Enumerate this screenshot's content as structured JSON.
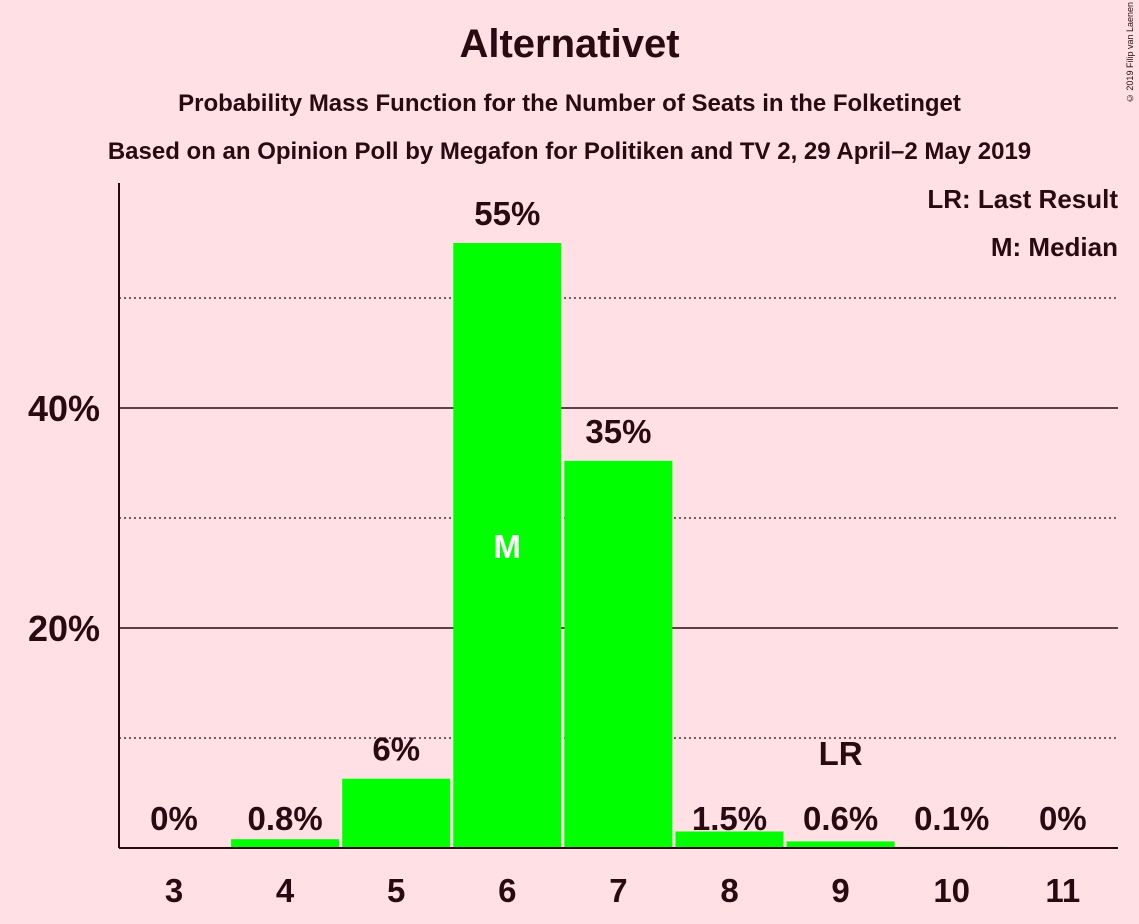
{
  "title": "Alternativet",
  "subtitle1": "Probability Mass Function for the Number of Seats in the Folketinget",
  "subtitle2": "Based on an Opinion Poll by Megafon for Politiken and TV 2, 29 April–2 May 2019",
  "copyright": "© 2019 Filip van Laenen",
  "legend": {
    "lr": "LR: Last Result",
    "m": "M: Median"
  },
  "colors": {
    "bar": "#00FF00",
    "background": "#FFE0E5",
    "text": "#2a0a12"
  },
  "chart_data": {
    "type": "bar",
    "categories": [
      "3",
      "4",
      "5",
      "6",
      "7",
      "8",
      "9",
      "10",
      "11"
    ],
    "values": [
      0,
      0.8,
      6.3,
      55,
      35.2,
      1.5,
      0.6,
      0.1,
      0
    ],
    "data_labels": [
      "0%",
      "0.8%",
      "6%",
      "55%",
      "35%",
      "1.5%",
      "0.6%",
      "0.1%",
      "0%"
    ],
    "ytick_labels": [
      "20%",
      "40%"
    ],
    "ylim": [
      0,
      60
    ],
    "major_gridlines": [
      20,
      40
    ],
    "minor_gridlines": [
      10,
      30,
      50
    ],
    "median": {
      "category": "6",
      "label": "M"
    },
    "last_result": {
      "category": "9",
      "label": "LR"
    },
    "xlabel": "",
    "ylabel": ""
  }
}
